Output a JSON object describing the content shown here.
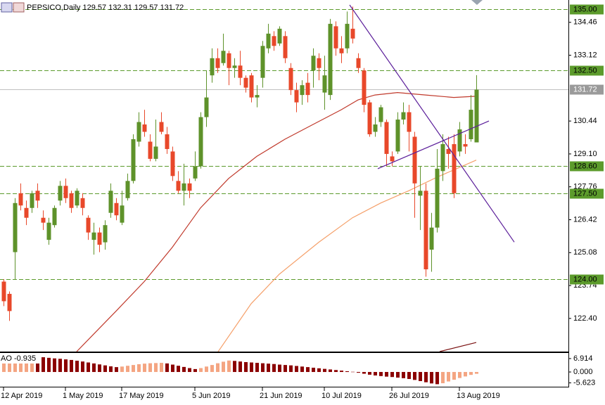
{
  "chart_data": [
    {
      "type": "candlestick",
      "title": "PEPSICO,Daily  129.57 132.31 129.57 131.72",
      "up_color": "#5e922a",
      "down_color": "#e8482a",
      "open": [
        123.9,
        123.4,
        125.1,
        127.5,
        126.9,
        126.9,
        127.6,
        126.5,
        125.6,
        126.2,
        127.2,
        127.8,
        127.5,
        127.0,
        127.3,
        126.5,
        125.6,
        125.9,
        125.5,
        126.7,
        127.1,
        126.3,
        127.3,
        128.0,
        129.6,
        130.3,
        129.6,
        128.9,
        130.4,
        129.9,
        129.2,
        128.0,
        127.6,
        127.9,
        128.1,
        128.6,
        130.6,
        132.3,
        133.0,
        132.8,
        133.2,
        132.6,
        132.7,
        132.2,
        132.3,
        131.4,
        132.2,
        133.4,
        133.9,
        133.6,
        133.9,
        132.6,
        131.7,
        131.5,
        132.0,
        132.5,
        133.0,
        131.6,
        131.5,
        134.3,
        133.4,
        133.4,
        134.2,
        133.0,
        132.5,
        131.2,
        130.0,
        130.4,
        130.4,
        129.0,
        129.2,
        130.5,
        130.8,
        129.8,
        127.4,
        127.6,
        125.2,
        126.1,
        128.4,
        129.3,
        129.5,
        129.2,
        129.5,
        129.7,
        129.57
      ],
      "high": [
        124.0,
        123.5,
        127.3,
        127.9,
        127.2,
        127.6,
        127.9,
        126.8,
        126.5,
        127.0,
        128.0,
        128.1,
        127.6,
        127.7,
        127.5,
        126.6,
        126.3,
        126.1,
        126.4,
        127.9,
        127.3,
        127.6,
        128.3,
        129.9,
        130.8,
        130.9,
        129.9,
        130.5,
        130.8,
        130.2,
        129.4,
        128.4,
        128.7,
        128.1,
        129.2,
        130.8,
        132.5,
        133.4,
        133.4,
        134.0,
        133.3,
        133.0,
        133.3,
        132.3,
        132.4,
        131.9,
        133.7,
        134.4,
        134.1,
        134.3,
        134.1,
        132.8,
        132.0,
        132.1,
        132.4,
        133.4,
        133.2,
        133.1,
        134.6,
        134.5,
        133.9,
        134.9,
        135.1,
        133.2,
        132.6,
        131.3,
        130.6,
        131.1,
        130.5,
        129.2,
        130.8,
        131.2,
        131.1,
        130.0,
        128.6,
        127.9,
        126.7,
        129.3,
        129.9,
        129.8,
        129.9,
        130.4,
        129.9,
        131.5,
        132.31
      ],
      "low": [
        122.9,
        122.3,
        124.0,
        126.8,
        126.2,
        126.7,
        126.9,
        126.0,
        125.4,
        126.1,
        127.0,
        127.1,
        126.7,
        126.9,
        126.6,
        125.6,
        125.0,
        125.1,
        125.2,
        126.5,
        126.4,
        126.2,
        127.2,
        127.9,
        129.4,
        129.8,
        128.8,
        128.8,
        129.9,
        129.1,
        128.0,
        127.5,
        127.0,
        127.3,
        128.0,
        128.5,
        130.2,
        132.0,
        132.4,
        132.7,
        131.9,
        132.2,
        131.9,
        131.6,
        131.2,
        131.0,
        131.8,
        133.2,
        133.3,
        133.5,
        132.8,
        131.5,
        130.8,
        131.1,
        131.2,
        131.8,
        132.1,
        130.9,
        131.3,
        133.1,
        132.8,
        133.2,
        133.6,
        132.4,
        130.8,
        129.8,
        129.8,
        130.2,
        128.6,
        128.6,
        129.1,
        130.3,
        129.2,
        126.5,
        126.0,
        124.1,
        124.3,
        125.9,
        128.0,
        128.5,
        127.3,
        129.0,
        129.1,
        129.6,
        129.57
      ],
      "close": [
        123.1,
        122.7,
        127.1,
        127.0,
        126.5,
        127.5,
        127.2,
        126.3,
        126.3,
        126.9,
        127.8,
        127.3,
        126.9,
        127.6,
        126.9,
        125.9,
        125.9,
        125.4,
        126.2,
        127.6,
        126.6,
        127.0,
        128.0,
        129.7,
        130.4,
        130.0,
        128.9,
        129.4,
        130.0,
        129.3,
        128.2,
        127.6,
        127.9,
        127.6,
        128.6,
        130.6,
        131.4,
        133.0,
        132.6,
        133.3,
        132.6,
        132.7,
        132.2,
        131.8,
        131.4,
        131.5,
        133.5,
        134.0,
        133.5,
        134.2,
        133.0,
        131.7,
        131.2,
        131.9,
        131.5,
        133.1,
        132.6,
        132.3,
        134.4,
        133.4,
        133.2,
        134.4,
        133.8,
        132.6,
        131.1,
        129.9,
        130.3,
        131.0,
        129.1,
        128.8,
        130.5,
        130.8,
        130.0,
        127.9,
        127.6,
        124.4,
        126.1,
        128.5,
        129.5,
        129.1,
        127.5,
        130.1,
        129.4,
        130.9,
        131.72
      ],
      "xlim": [
        -0.625,
        100.375
      ],
      "ylim": [
        121.05,
        135.37
      ],
      "xticks": [
        {
          "value": 0,
          "label": "12 Apr 2019"
        },
        {
          "value": 11,
          "label": "1 May 2019"
        },
        {
          "value": 21,
          "label": "17 May 2019"
        },
        {
          "value": 34,
          "label": "5 Jun 2019"
        },
        {
          "value": 46,
          "label": "21 Jun 2019"
        },
        {
          "value": 57,
          "label": "10 Jul 2019"
        },
        {
          "value": 69,
          "label": "26 Jul 2019"
        },
        {
          "value": 81,
          "label": "13 Aug 2019"
        }
      ],
      "yticks": [
        134.46,
        133.12,
        130.44,
        {
          "value": 129.1,
          "label": "129.10"
        },
        127.76,
        126.42,
        125.08,
        123.74,
        {
          "value": 122.4,
          "label": "122.40"
        }
      ],
      "levels": [
        {
          "value": 135,
          "label": "135.00"
        },
        {
          "value": 132.5,
          "label": "132.50"
        },
        {
          "value": 128.6,
          "label": "128.60"
        },
        {
          "value": 127.5,
          "label": "127.50"
        },
        {
          "value": 124,
          "label": "124.00"
        }
      ],
      "level_color": "#5c9b2c",
      "last_price": {
        "value": 131.72,
        "label": "131.72"
      },
      "last_price_color": "#9a9a9a",
      "lines": [
        {
          "color": "#c0392b",
          "x": [
            13,
            20,
            25,
            30,
            35,
            40,
            45,
            50,
            55,
            60,
            63,
            66,
            70,
            75,
            80,
            84
          ],
          "values": [
            121.05,
            122.7,
            123.9,
            125.3,
            126.9,
            128.1,
            129.0,
            129.7,
            130.3,
            130.9,
            131.3,
            131.5,
            131.6,
            131.5,
            131.4,
            131.45
          ]
        },
        {
          "color": "#f5a06a",
          "x": [
            38,
            44,
            49,
            56,
            62,
            67,
            72,
            77,
            84
          ],
          "values": [
            121.0,
            123.0,
            124.2,
            125.5,
            126.5,
            127.1,
            127.6,
            128.15,
            128.85
          ]
        }
      ],
      "trendlines": [
        {
          "color": "#5b1e9a",
          "x": [
            61.5,
            90.75
          ],
          "values": [
            135.17,
            125.51
          ]
        },
        {
          "color": "#5b1e9a",
          "x": [
            66.5,
            86.25
          ],
          "values": [
            128.5,
            130.44
          ]
        },
        {
          "color": "#7a1010",
          "x": [
            77.5,
            84
          ],
          "values": [
            121.05,
            121.42
          ]
        }
      ]
    },
    {
      "type": "bar",
      "label": "AO -0.935",
      "up_color": "#f4a582",
      "down_color": "#8b0000",
      "values": [
        6.5,
        6.8,
        7.2,
        7.6,
        7.8,
        8.0,
        7.9,
        7.6,
        7.3,
        7.0,
        6.8,
        6.5,
        6.2,
        5.8,
        5.4,
        4.9,
        4.4,
        3.9,
        3.4,
        2.9,
        2.5,
        2.8,
        3.2,
        3.6,
        4.0,
        4.3,
        4.5,
        4.6,
        4.7,
        4.4,
        3.8,
        3.2,
        2.6,
        2.0,
        1.5,
        2.0,
        2.8,
        3.6,
        4.5,
        5.3,
        5.9,
        5.7,
        5.4,
        5.1,
        4.9,
        4.7,
        4.5,
        4.3,
        4.1,
        3.8,
        3.6,
        3.4,
        3.1,
        2.8,
        2.5,
        2.2,
        1.9,
        1.6,
        1.3,
        1.0,
        0.7,
        0.4,
        0.1,
        -0.4,
        -0.9,
        -1.4,
        -1.8,
        -2.1,
        -2.4,
        -2.6,
        -2.9,
        -3.2,
        -3.6,
        -4.1,
        -4.7,
        -5.3,
        -5.9,
        -6.3,
        -5.8,
        -4.9,
        -4.0,
        -3.1,
        -2.3,
        -1.5,
        -0.935
      ],
      "xlim": [
        -0.625,
        100.375
      ],
      "ylim": [
        -7.6,
        9.8
      ],
      "yticks": [
        6.914,
        {
          "value": 0,
          "label": "0.000"
        },
        -5.623
      ]
    }
  ]
}
